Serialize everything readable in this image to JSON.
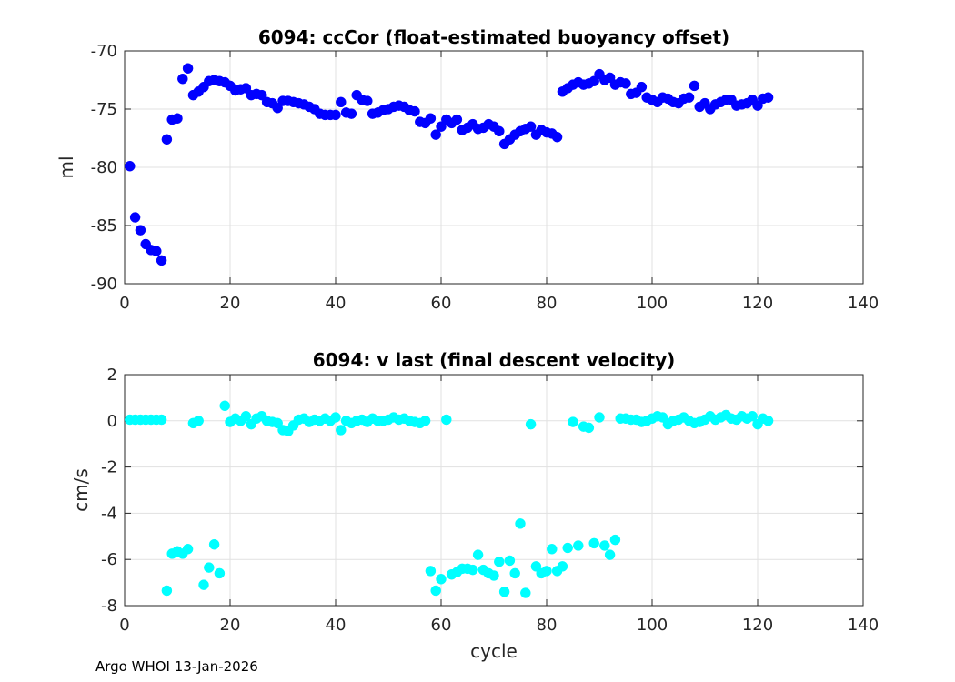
{
  "footer": {
    "credit": "Argo WHOI 13-Jan-2026"
  },
  "chart_data": [
    {
      "type": "scatter",
      "title": "6094: ccCor (float-estimated buoyancy offset)",
      "xlabel": "",
      "ylabel": "ml",
      "xlim": [
        0,
        140
      ],
      "ylim": [
        -90,
        -70
      ],
      "xticks": [
        0,
        20,
        40,
        60,
        80,
        100,
        120,
        140
      ],
      "yticks": [
        -90,
        -85,
        -80,
        -75,
        -70
      ],
      "grid": true,
      "marker_color": "#0000ff",
      "x": [
        1,
        2,
        3,
        4,
        5,
        6,
        7,
        8,
        9,
        10,
        11,
        12,
        13,
        14,
        15,
        16,
        17,
        18,
        19,
        20,
        21,
        22,
        23,
        24,
        25,
        26,
        27,
        28,
        29,
        30,
        31,
        32,
        33,
        34,
        35,
        36,
        37,
        38,
        39,
        40,
        41,
        42,
        43,
        44,
        45,
        46,
        47,
        48,
        49,
        50,
        51,
        52,
        53,
        54,
        55,
        56,
        57,
        58,
        59,
        60,
        61,
        62,
        63,
        64,
        65,
        66,
        67,
        68,
        69,
        70,
        71,
        72,
        73,
        74,
        75,
        76,
        77,
        78,
        79,
        80,
        81,
        82,
        83,
        84,
        85,
        86,
        87,
        88,
        89,
        90,
        91,
        92,
        93,
        94,
        95,
        96,
        97,
        98,
        99,
        100,
        101,
        102,
        103,
        104,
        105,
        106,
        107,
        108,
        109,
        110,
        111,
        112,
        113,
        114,
        115,
        116,
        117,
        118,
        119,
        120,
        121,
        122
      ],
      "y": [
        -79.9,
        -84.3,
        -85.4,
        -86.6,
        -87.1,
        -87.2,
        -88.0,
        -77.6,
        -75.9,
        -75.8,
        -72.4,
        -71.5,
        -73.8,
        -73.5,
        -73.1,
        -72.6,
        -72.5,
        -72.6,
        -72.7,
        -73.0,
        -73.4,
        -73.3,
        -73.2,
        -73.8,
        -73.7,
        -73.8,
        -74.4,
        -74.5,
        -74.9,
        -74.3,
        -74.3,
        -74.4,
        -74.5,
        -74.6,
        -74.8,
        -75.0,
        -75.4,
        -75.5,
        -75.5,
        -75.5,
        -74.4,
        -75.3,
        -75.4,
        -73.8,
        -74.2,
        -74.3,
        -75.4,
        -75.3,
        -75.1,
        -75.0,
        -74.8,
        -74.7,
        -74.8,
        -75.1,
        -75.2,
        -76.1,
        -76.2,
        -75.8,
        -77.2,
        -76.5,
        -75.9,
        -76.2,
        -75.9,
        -76.8,
        -76.6,
        -76.3,
        -76.7,
        -76.6,
        -76.3,
        -76.5,
        -76.9,
        -78.0,
        -77.6,
        -77.2,
        -76.9,
        -76.7,
        -76.5,
        -77.2,
        -76.8,
        -77.0,
        -77.1,
        -77.4,
        -73.5,
        -73.2,
        -72.9,
        -72.7,
        -72.9,
        -72.8,
        -72.6,
        -72.0,
        -72.5,
        -72.3,
        -72.9,
        -72.7,
        -72.8,
        -73.7,
        -73.6,
        -73.1,
        -74.0,
        -74.2,
        -74.4,
        -74.0,
        -74.1,
        -74.4,
        -74.5,
        -74.1,
        -74.0,
        -73.0,
        -74.8,
        -74.5,
        -75.0,
        -74.6,
        -74.4,
        -74.2,
        -74.2,
        -74.7,
        -74.6,
        -74.5,
        -74.2,
        -74.7,
        -74.1,
        -74.0
      ]
    },
    {
      "type": "scatter",
      "title": "6094: v last (final descent velocity)",
      "xlabel": "cycle",
      "ylabel": "cm/s",
      "xlim": [
        0,
        140
      ],
      "ylim": [
        -8,
        2
      ],
      "xticks": [
        0,
        20,
        40,
        60,
        80,
        100,
        120,
        140
      ],
      "yticks": [
        -8,
        -6,
        -4,
        -2,
        0,
        2
      ],
      "grid": true,
      "marker_color": "#00ffff",
      "x": [
        1,
        2,
        3,
        4,
        5,
        6,
        7,
        8,
        9,
        10,
        11,
        12,
        13,
        14,
        15,
        16,
        17,
        18,
        19,
        20,
        21,
        22,
        23,
        24,
        25,
        26,
        27,
        28,
        29,
        30,
        31,
        32,
        33,
        34,
        35,
        36,
        37,
        38,
        39,
        40,
        41,
        42,
        43,
        44,
        45,
        46,
        47,
        48,
        49,
        50,
        51,
        52,
        53,
        54,
        55,
        56,
        57,
        58,
        59,
        60,
        61,
        62,
        63,
        64,
        65,
        66,
        67,
        68,
        69,
        70,
        71,
        72,
        73,
        74,
        75,
        76,
        77,
        78,
        79,
        80,
        81,
        82,
        83,
        84,
        85,
        86,
        87,
        88,
        89,
        90,
        91,
        92,
        93,
        94,
        95,
        96,
        97,
        98,
        99,
        100,
        101,
        102,
        103,
        104,
        105,
        106,
        107,
        108,
        109,
        110,
        111,
        112,
        113,
        114,
        115,
        116,
        117,
        118,
        119,
        120,
        121,
        122
      ],
      "y": [
        0.05,
        0.05,
        0.05,
        0.05,
        0.05,
        0.05,
        0.05,
        -7.35,
        -5.75,
        -5.65,
        -5.75,
        -5.55,
        -0.1,
        0.0,
        -7.1,
        -6.35,
        -5.35,
        -6.6,
        0.65,
        -0.05,
        0.1,
        0.0,
        0.2,
        -0.15,
        0.1,
        0.2,
        0.0,
        -0.05,
        -0.1,
        -0.4,
        -0.45,
        -0.2,
        0.05,
        0.1,
        -0.05,
        0.05,
        0.0,
        0.1,
        0.0,
        0.15,
        -0.4,
        0.0,
        -0.1,
        0.0,
        0.05,
        -0.05,
        0.1,
        0.0,
        0.0,
        0.05,
        0.15,
        0.05,
        0.1,
        0.0,
        -0.05,
        -0.1,
        0.0,
        -6.5,
        -7.35,
        -6.85,
        0.05,
        -6.65,
        -6.55,
        -6.4,
        -6.4,
        -6.45,
        -5.8,
        -6.45,
        -6.6,
        -6.7,
        -6.1,
        -7.4,
        -6.05,
        -6.6,
        -4.45,
        -7.45,
        -0.15,
        -6.3,
        -6.6,
        -6.5,
        -5.55,
        -6.5,
        -6.3,
        -5.5,
        -0.05,
        -5.4,
        -0.25,
        -0.3,
        -5.3,
        0.15,
        -5.4,
        -5.8,
        -5.15,
        0.1,
        0.1,
        0.05,
        0.05,
        -0.05,
        0.0,
        0.1,
        0.2,
        0.15,
        -0.15,
        0.0,
        0.05,
        0.15,
        0.0,
        -0.1,
        -0.05,
        0.05,
        0.2,
        0.05,
        0.15,
        0.25,
        0.1,
        0.05,
        0.2,
        0.1,
        0.2,
        -0.15,
        0.1,
        0.0
      ]
    }
  ]
}
